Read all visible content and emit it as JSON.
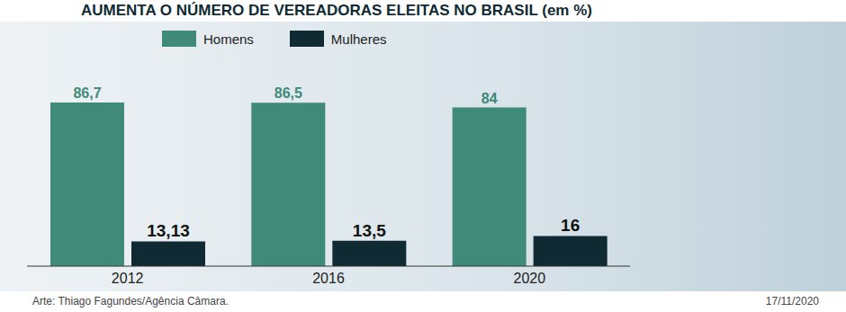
{
  "chart_data": {
    "type": "bar",
    "title": "AUMENTA O NÚMERO DE VEREADORAS ELEITAS NO BRASIL (em %)",
    "categories": [
      "2012",
      "2016",
      "2020"
    ],
    "series": [
      {
        "name": "Homens",
        "color": "#3f8a78",
        "values": [
          86.7,
          86.5,
          84
        ],
        "value_labels": [
          "86,7",
          "86,5",
          "84"
        ]
      },
      {
        "name": "Mulheres",
        "color": "#0f2a33",
        "values": [
          13.13,
          13.5,
          16
        ],
        "value_labels": [
          "13,13",
          "13,5",
          "16"
        ]
      }
    ],
    "ylim": [
      0,
      100
    ],
    "legend": "top",
    "data_labels": true,
    "tick_labels": "x",
    "grid": false
  },
  "footer": {
    "credit": "Arte: Thiago Fagundes/Agência Câmara.",
    "date": "17/11/2020"
  }
}
